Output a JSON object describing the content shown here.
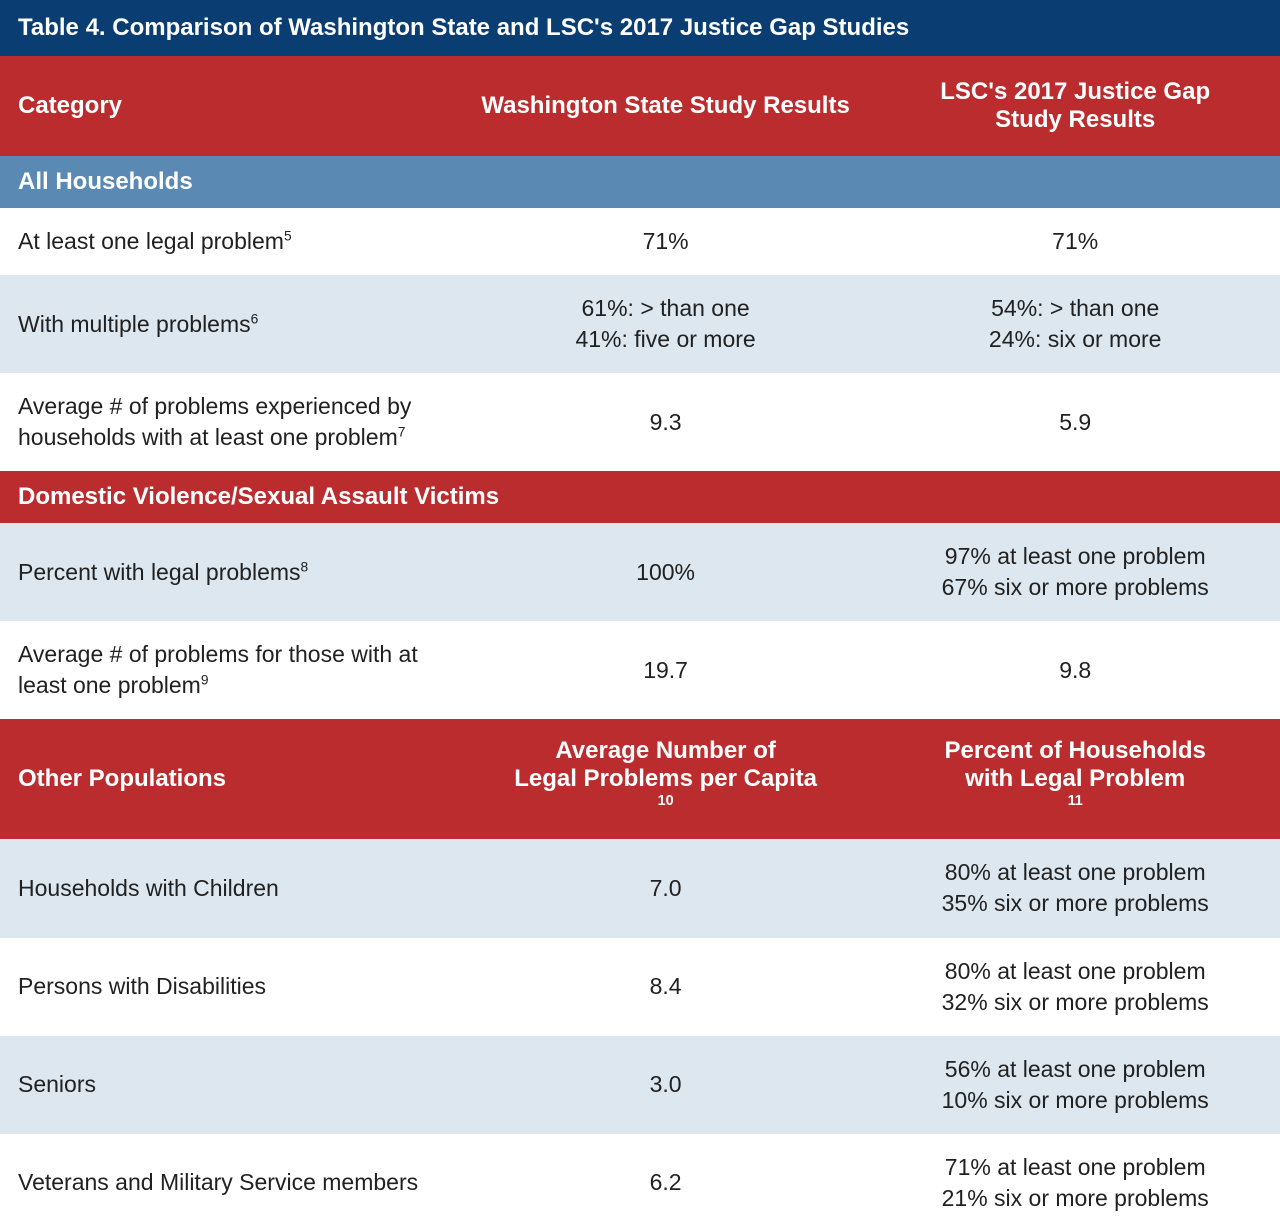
{
  "title": "Table 4. Comparison of Washington State and LSC's 2017 Justice Gap Studies",
  "columns": {
    "category": "Category",
    "wa": "Washington State Study Results",
    "lsc": "LSC's 2017 Justice Gap\nStudy Results"
  },
  "sections": {
    "all_households": {
      "label": "All Households",
      "rows": [
        {
          "label": "At least one legal problem",
          "sup": "5",
          "wa": "71%",
          "lsc": "71%",
          "tint": "white"
        },
        {
          "label": "With multiple problems",
          "sup": "6",
          "wa": "61%: > than one\n41%: five or more",
          "lsc": "54%: > than one\n24%: six or more",
          "tint": "tint"
        },
        {
          "label": "Average # of problems experienced by households with at least one problem",
          "sup": "7",
          "wa": "9.3",
          "lsc": "5.9",
          "tint": "white"
        }
      ]
    },
    "dv_sa": {
      "label": "Domestic Violence/Sexual Assault Victims",
      "rows": [
        {
          "label": "Percent with legal problems",
          "sup": "8",
          "wa": "100%",
          "lsc": "97% at least one problem\n67% six or more problems",
          "tint": "tint"
        },
        {
          "label": "Average # of problems for those with at least one problem",
          "sup": "9",
          "wa": "19.7",
          "lsc": "9.8",
          "tint": "white"
        }
      ]
    },
    "other": {
      "label": "Other Populations",
      "col2_label": "Average Number of\nLegal Problems per Capita",
      "col2_sup": "10",
      "col3_label": "Percent of Households\nwith Legal Problem",
      "col3_sup": "11",
      "rows": [
        {
          "label": "Households with Children",
          "wa": "7.0",
          "lsc": "80% at least one problem\n35% six or more problems",
          "tint": "tint"
        },
        {
          "label": "Persons with Disabilities",
          "wa": "8.4",
          "lsc": "80% at least one problem\n32% six or more problems",
          "tint": "white"
        },
        {
          "label": "Seniors",
          "wa": "3.0",
          "lsc": "56% at least one problem\n10% six or more problems",
          "tint": "tint"
        },
        {
          "label": "Veterans and Military Service members",
          "wa": "6.2",
          "lsc": "71% at least one problem\n21% six or more problems",
          "tint": "white"
        }
      ]
    }
  },
  "style": {
    "title_bg": "#0a3d72",
    "header_bg": "#bb2c2e",
    "section_blue_bg": "#5a89b4",
    "tint_bg": "#dde7ef",
    "text_color": "#212121",
    "header_text": "#ffffff",
    "base_fontsize": 23,
    "header_fontsize": 24,
    "title_fontsize": 24
  }
}
